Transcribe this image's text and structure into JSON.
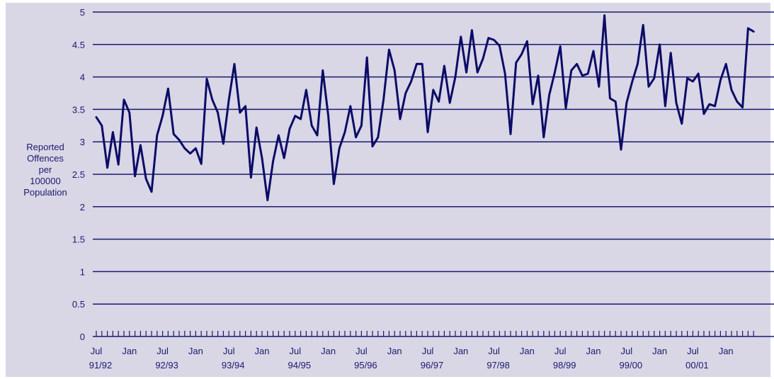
{
  "chart_data": {
    "type": "line",
    "ylabel_lines": [
      "Reported",
      "Offences",
      "per",
      "100000",
      "Population"
    ],
    "ylim": [
      0,
      5
    ],
    "y_ticks": [
      "0",
      "0.5",
      "1",
      "1.5",
      "2",
      "2.5",
      "3",
      "3.5",
      "4",
      "4.5",
      "5"
    ],
    "x_tick_months": [
      "Jul",
      "Jan",
      "Jul",
      "Jan",
      "Jul",
      "Jan",
      "Jul",
      "Jan",
      "Jul",
      "Jan",
      "Jul",
      "Jan",
      "Jul",
      "Jan",
      "Jul",
      "Jan",
      "Jul",
      "Jan",
      "Jul",
      "Jan"
    ],
    "x_tick_years": [
      "91/92",
      "92/93",
      "93/94",
      "94/95",
      "95/96",
      "96/97",
      "97/98",
      "98/99",
      "99/00",
      "00/01"
    ],
    "grid": true,
    "colors": {
      "background": "#d9d6e6",
      "line": "#0b0b66",
      "grid": "#1a1a6e",
      "text": "#1a1a6e"
    },
    "series": [
      {
        "values": [
          3.38,
          3.25,
          2.6,
          3.15,
          2.65,
          3.65,
          3.45,
          2.47,
          2.95,
          2.43,
          2.23,
          3.1,
          3.4,
          3.82,
          3.12,
          3.03,
          2.9,
          2.82,
          2.9,
          2.66,
          3.97,
          3.65,
          3.45,
          2.97,
          3.65,
          4.2,
          3.45,
          3.55,
          2.45,
          3.22,
          2.75,
          2.1,
          2.7,
          3.1,
          2.75,
          3.2,
          3.4,
          3.35,
          3.8,
          3.25,
          3.1,
          4.1,
          3.4,
          2.35,
          2.9,
          3.15,
          3.55,
          3.07,
          3.25,
          4.3,
          2.93,
          3.07,
          3.65,
          4.42,
          4.1,
          3.35,
          3.75,
          3.93,
          4.2,
          4.2,
          3.15,
          3.8,
          3.62,
          4.17,
          3.6,
          4.0,
          4.62,
          4.07,
          4.72,
          4.07,
          4.28,
          4.6,
          4.57,
          4.48,
          4.05,
          3.12,
          4.22,
          4.35,
          4.55,
          3.58,
          4.02,
          3.07,
          3.72,
          4.07,
          4.47,
          3.52,
          4.1,
          4.2,
          4.02,
          4.05,
          4.4,
          3.85,
          4.95,
          3.67,
          3.62,
          2.88,
          3.6,
          3.92,
          4.2,
          4.8,
          3.85,
          3.98,
          4.5,
          3.55,
          4.37,
          3.6,
          3.28,
          3.98,
          3.93,
          4.05,
          3.43,
          3.58,
          3.55,
          3.95,
          4.2,
          3.8,
          3.62,
          3.53,
          4.75,
          4.7
        ]
      }
    ]
  }
}
